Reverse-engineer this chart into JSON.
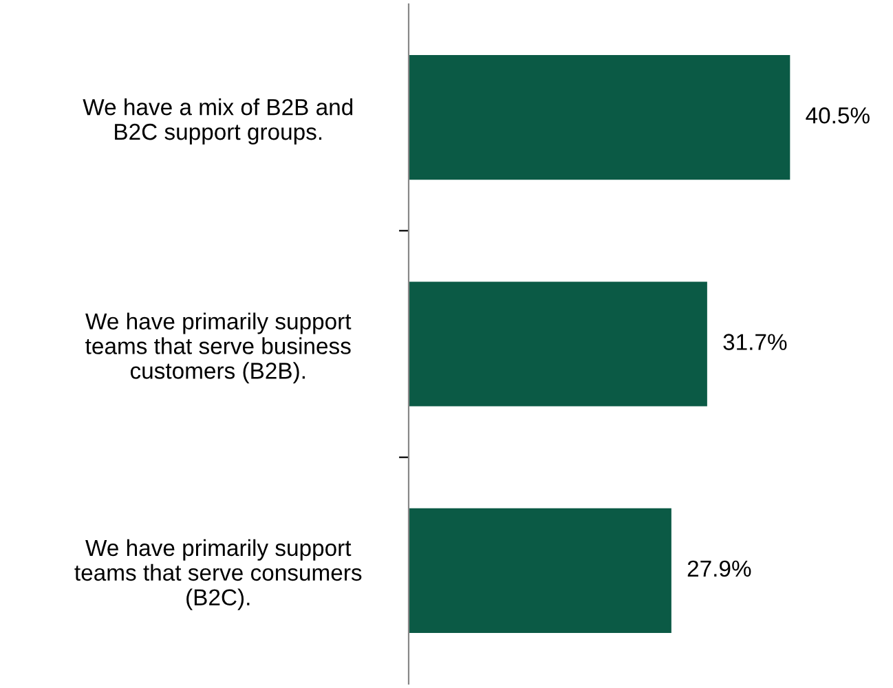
{
  "chart_data": {
    "type": "bar",
    "orientation": "horizontal",
    "categories": [
      "We have a mix of B2B and\nB2C support groups.",
      "We have primarily support\nteams that serve business\ncustomers (B2B).",
      "We have primarily support\nteams that serve consumers\n(B2C)."
    ],
    "values": [
      40.5,
      31.7,
      27.9
    ],
    "color": "#0b5a45",
    "data_labels": true,
    "value_labels": [
      "40.5%",
      "31.7%",
      "27.9%"
    ],
    "grid": false,
    "legend": false
  }
}
